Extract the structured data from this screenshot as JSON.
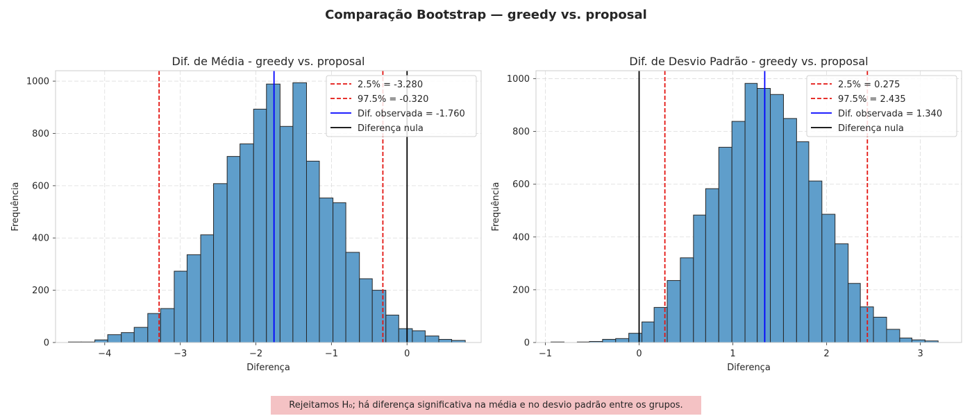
{
  "suptitle": "Comparação Bootstrap — greedy vs. proposal",
  "footnote": "Rejeitamos H₀; há diferença significativa na média e no desvio padrão entre os grupos.",
  "colors": {
    "bars": "#5f9ecb",
    "edge": "#262626",
    "ci": "#e3130f",
    "observed": "#0000ff",
    "null": "#000000",
    "footnote_bg": "#f4c2c4"
  },
  "chart_data": [
    {
      "type": "bar",
      "title": "Dif. de Média - greedy vs. proposal",
      "xlabel": "Diferença",
      "ylabel": "Frequência",
      "xlim": [
        -4.65,
        0.98
      ],
      "ylim": [
        0,
        1040
      ],
      "xticks": [
        -4,
        -3,
        -2,
        -1,
        0
      ],
      "xtick_labels": [
        "−4",
        "−3",
        "−2",
        "−1",
        "0"
      ],
      "yticks": [
        0,
        200,
        400,
        600,
        800,
        1000
      ],
      "ytick_labels": [
        "0",
        "200",
        "400",
        "600",
        "800",
        "1000"
      ],
      "grid": true,
      "legend_position": "upper right",
      "bin_edges": [
        -4.48,
        -4.31,
        -4.13,
        -3.96,
        -3.78,
        -3.61,
        -3.43,
        -3.26,
        -3.08,
        -2.91,
        -2.73,
        -2.56,
        -2.38,
        -2.21,
        -2.03,
        -1.86,
        -1.68,
        -1.51,
        -1.33,
        -1.16,
        -0.98,
        -0.81,
        -0.63,
        -0.46,
        -0.28,
        -0.11,
        0.07,
        0.24,
        0.42,
        0.59,
        0.77
      ],
      "counts": [
        2,
        2,
        10,
        30,
        38,
        58,
        111,
        130,
        273,
        336,
        412,
        608,
        712,
        760,
        893,
        989,
        827,
        994,
        694,
        553,
        535,
        345,
        244,
        200,
        105,
        53,
        45,
        25,
        12,
        8
      ],
      "lines": [
        {
          "label": "2.5% = -3.280",
          "x": -3.28,
          "style": "dashed",
          "color": "#e3130f"
        },
        {
          "label": "97.5% = -0.320",
          "x": -0.32,
          "style": "dashed",
          "color": "#e3130f"
        },
        {
          "label": "Dif. observada = -1.760",
          "x": -1.76,
          "style": "solid",
          "color": "#0000ff"
        },
        {
          "label": "Diferença nula",
          "x": 0,
          "style": "solid",
          "color": "#000000"
        }
      ]
    },
    {
      "type": "bar",
      "title": "Dif. de Desvio Padrão - greedy vs. proposal",
      "xlabel": "Diferença",
      "ylabel": "Frequência",
      "xlim": [
        -1.1,
        3.44
      ],
      "ylim": [
        0,
        1030
      ],
      "xticks": [
        -1,
        0,
        1,
        2,
        3
      ],
      "xtick_labels": [
        "−1",
        "0",
        "1",
        "2",
        "3"
      ],
      "yticks": [
        0,
        200,
        400,
        600,
        800,
        1000
      ],
      "ytick_labels": [
        "0",
        "200",
        "400",
        "600",
        "800",
        "1000"
      ],
      "grid": true,
      "legend_position": "upper right",
      "bin_edges": [
        -0.94,
        -0.8,
        -0.66,
        -0.53,
        -0.39,
        -0.25,
        -0.11,
        0.03,
        0.16,
        0.3,
        0.44,
        0.58,
        0.71,
        0.85,
        0.99,
        1.13,
        1.26,
        1.4,
        1.54,
        1.68,
        1.81,
        1.95,
        2.09,
        2.23,
        2.36,
        2.5,
        2.64,
        2.78,
        2.91,
        3.05,
        3.19
      ],
      "counts": [
        2,
        0,
        2,
        4,
        12,
        15,
        35,
        78,
        133,
        235,
        321,
        483,
        583,
        740,
        838,
        982,
        963,
        940,
        849,
        761,
        612,
        486,
        374,
        224,
        135,
        96,
        50,
        17,
        10,
        6
      ],
      "lines": [
        {
          "label": "2.5% = 0.275",
          "x": 0.275,
          "style": "dashed",
          "color": "#e3130f"
        },
        {
          "label": "97.5% = 2.435",
          "x": 2.435,
          "style": "dashed",
          "color": "#e3130f"
        },
        {
          "label": "Dif. observada = 1.340",
          "x": 1.34,
          "style": "solid",
          "color": "#0000ff"
        },
        {
          "label": "Diferença nula",
          "x": 0,
          "style": "solid",
          "color": "#000000"
        }
      ]
    }
  ]
}
